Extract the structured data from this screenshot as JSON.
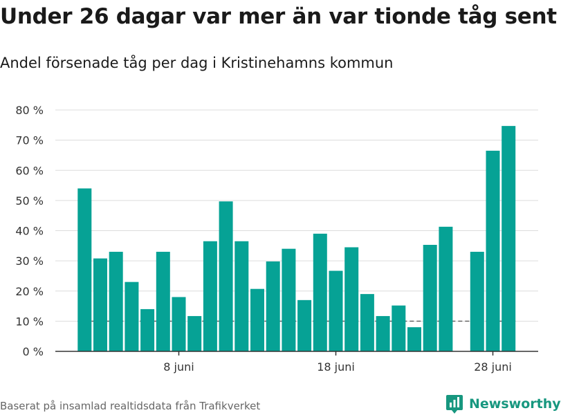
{
  "title": "Under 26 dagar var mer än var tionde tåg sent",
  "subtitle": "Andel försenade tåg per dag i Kristinehamns kommun",
  "footer": {
    "source": "Baserat på insamlad realtidsdata från Trafikverket",
    "brand": "Newsworthy"
  },
  "colors": {
    "bar": "#06a295",
    "grid": "#dcdcdc",
    "axis": "#333333",
    "reference_line": "#666666",
    "brand": "#17977f"
  },
  "chart_data": {
    "type": "bar",
    "x_axis": {
      "start": "2 juni",
      "end": "29 juni",
      "tick_labels": [
        {
          "value": "8 juni",
          "day": 8
        },
        {
          "value": "18 juni",
          "day": 18
        },
        {
          "value": "28 juni",
          "day": 28
        }
      ]
    },
    "y_axis": {
      "ylim": [
        0,
        80
      ],
      "tick_labels": [
        "0 %",
        "10 %",
        "20 %",
        "30 %",
        "40 %",
        "50 %",
        "60 %",
        "70 %",
        "80 %"
      ]
    },
    "grid": true,
    "reference_line": {
      "value": 10,
      "style": "dashed"
    },
    "days": [
      2,
      3,
      4,
      5,
      6,
      7,
      8,
      9,
      10,
      11,
      12,
      13,
      14,
      15,
      16,
      17,
      18,
      19,
      20,
      21,
      22,
      23,
      24,
      25,
      26,
      27,
      28,
      29
    ],
    "values": [
      54,
      30.8,
      33,
      23,
      14,
      33,
      18,
      11.7,
      36.5,
      49.7,
      36.5,
      20.7,
      29.8,
      34,
      17,
      39,
      26.7,
      34.5,
      19,
      11.7,
      15.2,
      8,
      35.3,
      41.3,
      null,
      33,
      66.5,
      74.7
    ]
  }
}
